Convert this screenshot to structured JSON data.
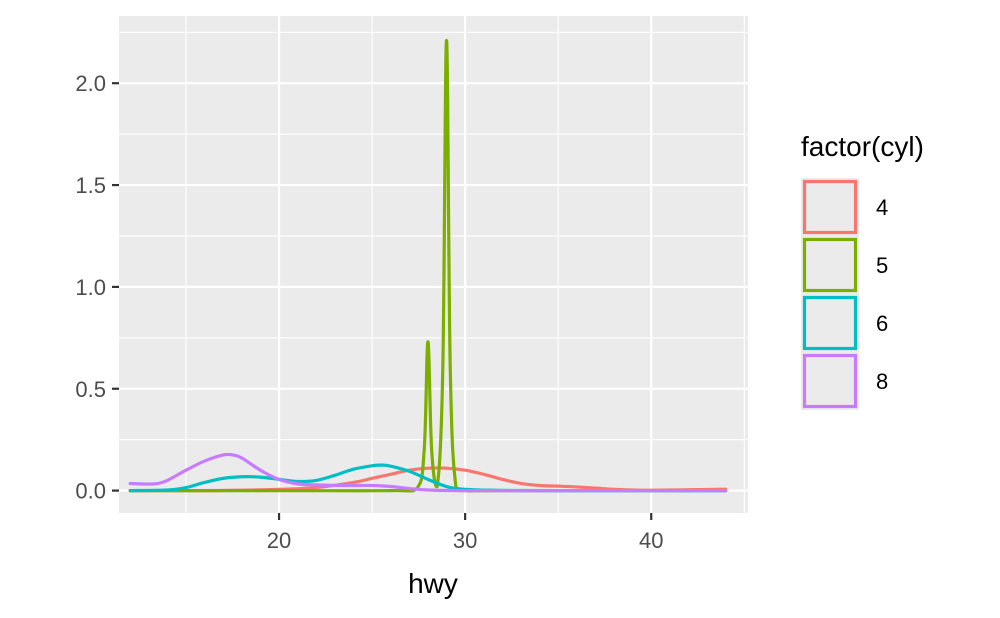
{
  "chart_data": {
    "type": "line",
    "title": "",
    "xlabel": "hwy",
    "ylabel": "",
    "xlim": [
      11.4,
      45.2
    ],
    "ylim": [
      -0.11,
      2.33
    ],
    "x_ticks": [
      20,
      30,
      40
    ],
    "x_tick_labels": [
      "20",
      "30",
      "40"
    ],
    "y_ticks": [
      0.0,
      0.5,
      1.0,
      1.5,
      2.0
    ],
    "y_tick_labels": [
      "0.0",
      "0.5",
      "1.0",
      "1.5",
      "2.0"
    ],
    "grid": true,
    "legend": {
      "title": "factor(cyl)",
      "position": "right"
    },
    "series": [
      {
        "name": "4",
        "color": "#F8766D",
        "x": [
          12,
          16,
          18,
          20,
          22,
          24,
          25,
          26,
          27,
          28,
          29,
          30,
          31,
          32,
          33,
          34,
          35,
          36,
          37,
          38,
          39,
          40,
          42,
          44
        ],
        "y": [
          0.0,
          0.0,
          0.002,
          0.006,
          0.015,
          0.04,
          0.06,
          0.08,
          0.1,
          0.11,
          0.11,
          0.1,
          0.08,
          0.055,
          0.035,
          0.025,
          0.022,
          0.018,
          0.012,
          0.006,
          0.003,
          0.002,
          0.004,
          0.007
        ]
      },
      {
        "name": "5",
        "color": "#7CAE00",
        "x": [
          12,
          20,
          26,
          27.4,
          27.8,
          28.0,
          28.2,
          28.5,
          28.8,
          29.0,
          29.2,
          29.5,
          30,
          32,
          44
        ],
        "y": [
          0.0,
          0.0,
          0.0,
          0.01,
          0.2,
          0.73,
          0.2,
          0.02,
          0.6,
          2.21,
          0.6,
          0.02,
          0.0,
          0.0,
          0.0
        ]
      },
      {
        "name": "6",
        "color": "#00BFC4",
        "x": [
          12,
          14,
          15,
          16,
          17,
          18,
          19,
          20,
          21,
          22,
          23,
          24,
          25,
          25.5,
          26,
          27,
          28,
          29,
          30,
          32,
          35,
          40,
          44
        ],
        "y": [
          0.0,
          0.003,
          0.015,
          0.04,
          0.06,
          0.068,
          0.066,
          0.055,
          0.045,
          0.05,
          0.075,
          0.105,
          0.122,
          0.125,
          0.12,
          0.095,
          0.055,
          0.02,
          0.006,
          0.001,
          0.0,
          0.0,
          0.0
        ]
      },
      {
        "name": "8",
        "color": "#C77CFF",
        "x": [
          12,
          13,
          13.5,
          14,
          15,
          16,
          17,
          17.5,
          18,
          19,
          20,
          21,
          22,
          23,
          24,
          25,
          26,
          27,
          28,
          30,
          35,
          40,
          44
        ],
        "y": [
          0.035,
          0.032,
          0.035,
          0.05,
          0.1,
          0.145,
          0.175,
          0.175,
          0.16,
          0.1,
          0.055,
          0.033,
          0.028,
          0.025,
          0.025,
          0.025,
          0.02,
          0.01,
          0.003,
          0.0,
          0.0,
          0.0,
          0.0
        ]
      }
    ]
  },
  "style": {
    "panel_bg": "#EBEBEB",
    "grid_color": "#FFFFFF",
    "tick_color": "#333333"
  }
}
